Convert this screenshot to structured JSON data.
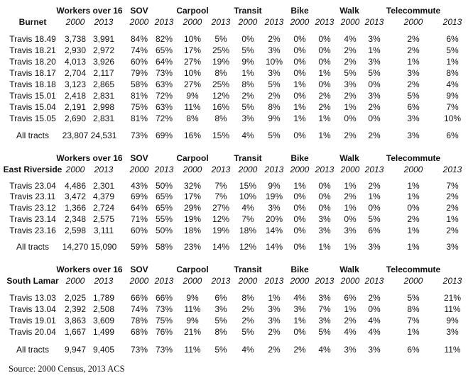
{
  "headers": {
    "groups": [
      "Workers over 16",
      "SOV",
      "Carpool",
      "Transit",
      "Bike",
      "Walk",
      "Telecommute"
    ],
    "years": [
      "2000",
      "2013",
      "2000",
      "2013",
      "2000",
      "2013",
      "2000",
      "2013",
      "2000",
      "2013",
      "2000",
      "2013",
      "2000",
      "2013"
    ]
  },
  "sections": [
    {
      "name": "Burnet",
      "rows": [
        {
          "tract": "Travis 18.49",
          "values": [
            "3,738",
            "3,991",
            "84%",
            "82%",
            "10%",
            "5%",
            "0%",
            "2%",
            "0%",
            "0%",
            "4%",
            "3%",
            "2%",
            "6%"
          ]
        },
        {
          "tract": "Travis 18.21",
          "values": [
            "2,930",
            "2,972",
            "74%",
            "65%",
            "17%",
            "25%",
            "5%",
            "3%",
            "0%",
            "0%",
            "2%",
            "1%",
            "2%",
            "5%"
          ]
        },
        {
          "tract": "Travis 18.20",
          "values": [
            "4,013",
            "3,926",
            "60%",
            "64%",
            "27%",
            "19%",
            "9%",
            "10%",
            "0%",
            "0%",
            "2%",
            "3%",
            "1%",
            "1%"
          ]
        },
        {
          "tract": "Travis 18.17",
          "values": [
            "2,704",
            "2,117",
            "79%",
            "73%",
            "10%",
            "8%",
            "1%",
            "3%",
            "0%",
            "1%",
            "5%",
            "5%",
            "3%",
            "8%"
          ]
        },
        {
          "tract": "Travis 18.18",
          "values": [
            "3,123",
            "2,865",
            "58%",
            "63%",
            "27%",
            "25%",
            "8%",
            "5%",
            "1%",
            "0%",
            "3%",
            "0%",
            "2%",
            "4%"
          ]
        },
        {
          "tract": "Travis 15.01",
          "values": [
            "2,418",
            "2,831",
            "81%",
            "72%",
            "9%",
            "12%",
            "2%",
            "2%",
            "0%",
            "2%",
            "2%",
            "3%",
            "5%",
            "9%"
          ]
        },
        {
          "tract": "Travis 15.04",
          "values": [
            "2,191",
            "2,998",
            "75%",
            "63%",
            "11%",
            "16%",
            "5%",
            "8%",
            "1%",
            "2%",
            "1%",
            "2%",
            "6%",
            "7%"
          ]
        },
        {
          "tract": "Travis 15.05",
          "values": [
            "2,690",
            "2,831",
            "81%",
            "72%",
            "8%",
            "8%",
            "3%",
            "9%",
            "1%",
            "1%",
            "0%",
            "0%",
            "3%",
            "10%"
          ]
        }
      ],
      "total": {
        "label": "All tracts",
        "values": [
          "23,807",
          "24,531",
          "73%",
          "69%",
          "16%",
          "15%",
          "4%",
          "5%",
          "0%",
          "1%",
          "2%",
          "2%",
          "3%",
          "6%"
        ]
      }
    },
    {
      "name": "East Riverside",
      "rows": [
        {
          "tract": "Travis 23.04",
          "values": [
            "4,486",
            "2,301",
            "43%",
            "50%",
            "32%",
            "7%",
            "15%",
            "9%",
            "1%",
            "0%",
            "1%",
            "2%",
            "1%",
            "7%"
          ]
        },
        {
          "tract": "Travis 23.11",
          "values": [
            "3,472",
            "4,379",
            "69%",
            "65%",
            "17%",
            "7%",
            "10%",
            "19%",
            "0%",
            "0%",
            "2%",
            "1%",
            "1%",
            "2%"
          ]
        },
        {
          "tract": "Travis 23.12",
          "values": [
            "1,366",
            "2,724",
            "64%",
            "65%",
            "29%",
            "27%",
            "4%",
            "3%",
            "0%",
            "0%",
            "1%",
            "0%",
            "0%",
            "2%"
          ]
        },
        {
          "tract": "Travis 23.14",
          "values": [
            "2,348",
            "2,575",
            "71%",
            "55%",
            "19%",
            "12%",
            "7%",
            "20%",
            "0%",
            "3%",
            "0%",
            "5%",
            "2%",
            "1%"
          ]
        },
        {
          "tract": "Travis 23.16",
          "values": [
            "2,598",
            "3,111",
            "60%",
            "50%",
            "18%",
            "19%",
            "18%",
            "14%",
            "0%",
            "3%",
            "3%",
            "6%",
            "1%",
            "2%"
          ]
        }
      ],
      "total": {
        "label": "All tracts",
        "values": [
          "14,270",
          "15,090",
          "59%",
          "58%",
          "23%",
          "14%",
          "12%",
          "14%",
          "0%",
          "1%",
          "1%",
          "3%",
          "1%",
          "3%"
        ]
      }
    },
    {
      "name": "South Lamar",
      "rows": [
        {
          "tract": "Travis 13.03",
          "values": [
            "2,025",
            "1,789",
            "66%",
            "66%",
            "9%",
            "6%",
            "8%",
            "1%",
            "4%",
            "3%",
            "6%",
            "2%",
            "5%",
            "21%"
          ]
        },
        {
          "tract": "Travis 13.04",
          "values": [
            "2,392",
            "2,508",
            "74%",
            "73%",
            "11%",
            "3%",
            "2%",
            "3%",
            "3%",
            "7%",
            "1%",
            "0%",
            "8%",
            "11%"
          ]
        },
        {
          "tract": "Travis 19.01",
          "values": [
            "3,863",
            "3,609",
            "78%",
            "75%",
            "9%",
            "5%",
            "2%",
            "3%",
            "1%",
            "3%",
            "2%",
            "4%",
            "7%",
            "9%"
          ]
        },
        {
          "tract": "Travis 20.04",
          "values": [
            "1,667",
            "1,499",
            "68%",
            "76%",
            "21%",
            "8%",
            "5%",
            "2%",
            "0%",
            "5%",
            "4%",
            "4%",
            "1%",
            "3%"
          ]
        }
      ],
      "total": {
        "label": "All tracts",
        "values": [
          "9,947",
          "9,405",
          "73%",
          "73%",
          "11%",
          "5%",
          "4%",
          "2%",
          "2%",
          "4%",
          "3%",
          "3%",
          "6%",
          "11%"
        ]
      }
    }
  ],
  "source": "Source: 2000 Census, 2013 ACS"
}
